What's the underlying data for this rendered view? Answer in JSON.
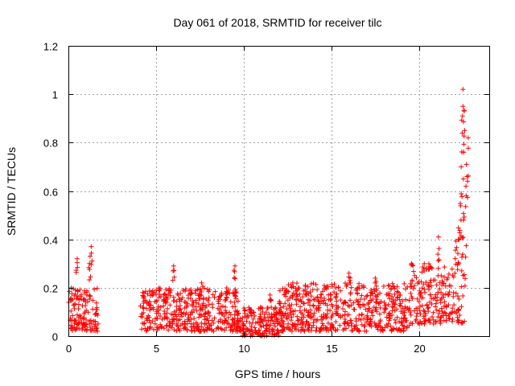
{
  "chart_data": {
    "type": "scatter",
    "title": "Day 061 of 2018, SRMTID for receiver tilc",
    "xlabel": "GPS time / hours",
    "ylabel": "SRMTID / TECUs",
    "xlim": [
      0,
      24
    ],
    "ylim": [
      0,
      1.2
    ],
    "x_ticks": [
      0,
      5,
      10,
      15,
      20
    ],
    "y_ticks": [
      0,
      0.2,
      0.4,
      0.6,
      0.8,
      1,
      1.2
    ],
    "x_tick_labels": [
      "0",
      "5",
      "10",
      "15",
      "20"
    ],
    "y_tick_labels": [
      "0",
      "0.2",
      "0.4",
      "0.6",
      "0.8",
      "1",
      "1.2"
    ],
    "grid": true,
    "marker": "+",
    "color": "#ff0000",
    "series": [
      {
        "name": "SRMTID",
        "segments": [
          {
            "x_start": 0.0,
            "x_end": 1.7,
            "y_typical": [
              0.02,
              0.2
            ],
            "peaks": [
              [
                0.5,
                0.32
              ],
              [
                1.3,
                0.37
              ],
              [
                1.2,
                0.3
              ]
            ]
          },
          {
            "x_start": 4.1,
            "x_end": 9.8,
            "y_typical": [
              0.02,
              0.2
            ],
            "peaks": [
              [
                6.0,
                0.29
              ],
              [
                9.5,
                0.29
              ],
              [
                7.6,
                0.22
              ]
            ]
          },
          {
            "x_start": 9.8,
            "x_end": 12.0,
            "y_typical": [
              0.0,
              0.12
            ],
            "peaks": [
              [
                11.5,
                0.17
              ]
            ]
          },
          {
            "x_start": 12.0,
            "x_end": 19.5,
            "y_typical": [
              0.02,
              0.22
            ],
            "peaks": [
              [
                12.8,
                0.22
              ],
              [
                16.0,
                0.26
              ],
              [
                17.5,
                0.24
              ]
            ]
          },
          {
            "x_start": 19.5,
            "x_end": 21.5,
            "y_typical": [
              0.05,
              0.3
            ],
            "peaks": [
              [
                21.1,
                0.41
              ]
            ]
          },
          {
            "x_start": 21.5,
            "x_end": 22.7,
            "y_typical": [
              0.05,
              0.6
            ],
            "peaks": [
              [
                22.5,
                1.02
              ],
              [
                22.5,
                0.95
              ],
              [
                22.6,
                0.85
              ],
              [
                22.4,
                0.7
              ],
              [
                22.7,
                0.71
              ],
              [
                22.8,
                0.82
              ]
            ]
          }
        ]
      }
    ]
  }
}
